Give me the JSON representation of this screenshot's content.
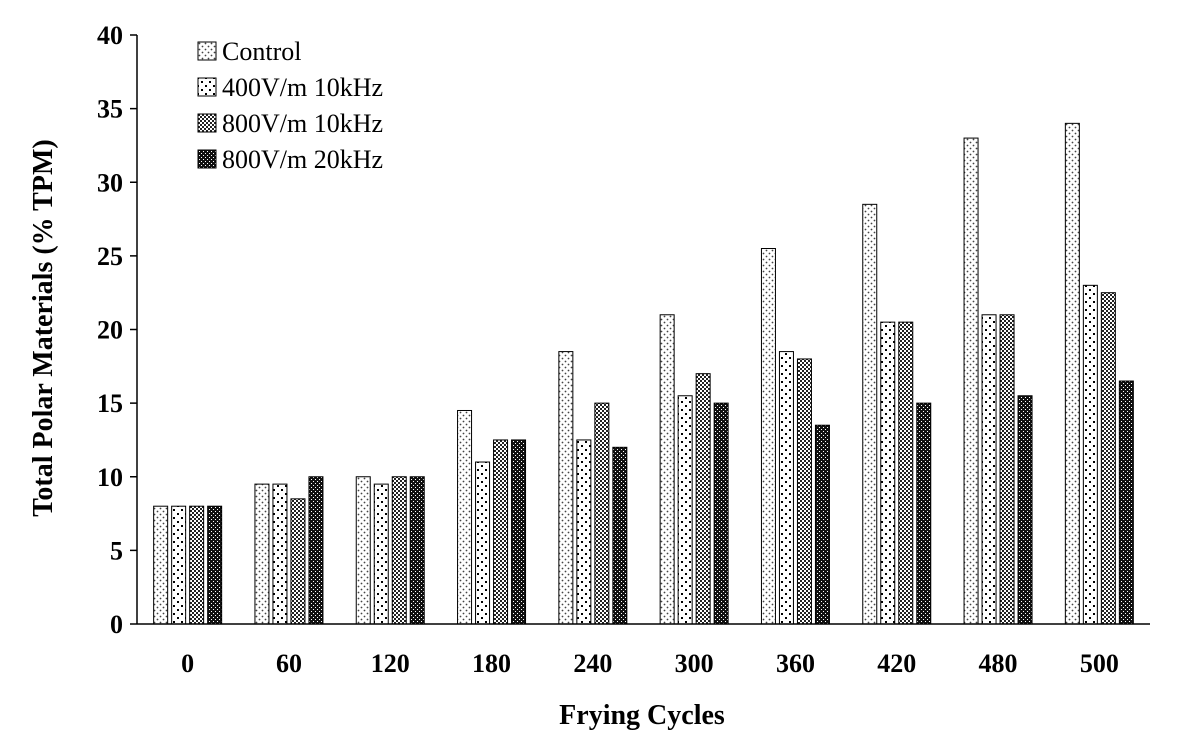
{
  "chart_data": {
    "type": "bar",
    "title": "",
    "xlabel": "Frying Cycles",
    "ylabel": "Total Polar Materials (% TPM)",
    "ylim": [
      0,
      40
    ],
    "yticks": [
      0,
      5,
      10,
      15,
      20,
      25,
      30,
      35,
      40
    ],
    "grid": false,
    "legend_position": "top-left",
    "categories": [
      "0",
      "60",
      "120",
      "180",
      "240",
      "300",
      "360",
      "420",
      "480",
      "500"
    ],
    "series": [
      {
        "name": "Control",
        "pattern": "light-dotted",
        "values": [
          8,
          9.5,
          10,
          14.5,
          18.5,
          21,
          25.5,
          28.5,
          33,
          34
        ]
      },
      {
        "name": "400V/m 10kHz",
        "pattern": "sparse-dots",
        "values": [
          8,
          9.5,
          9.5,
          11,
          12.5,
          15.5,
          18.5,
          20.5,
          21,
          23
        ]
      },
      {
        "name": "800V/m 10kHz",
        "pattern": "checkered",
        "values": [
          8,
          8.5,
          10,
          12.5,
          15,
          17,
          18,
          20.5,
          21,
          22.5
        ]
      },
      {
        "name": "800V/m 20kHz",
        "pattern": "dense-dark",
        "values": [
          8,
          10,
          10,
          12.5,
          12,
          15,
          13.5,
          15,
          15.5,
          16.5
        ]
      }
    ]
  }
}
